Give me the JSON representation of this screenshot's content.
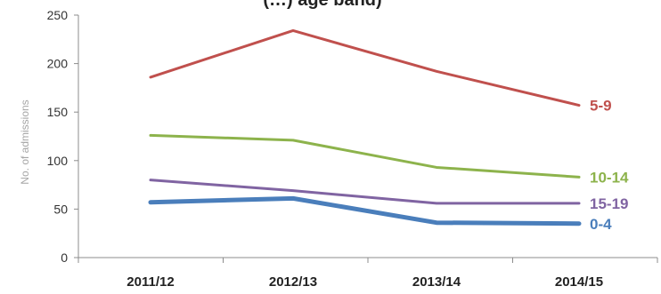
{
  "chart_data": {
    "type": "line",
    "title": "(…) age band)",
    "xlabel": "",
    "ylabel": "No. of admissions",
    "ylim": [
      0,
      250
    ],
    "yticks": [
      0,
      50,
      100,
      150,
      200,
      250
    ],
    "grid": false,
    "legend": "inline-right",
    "categories": [
      "2011/12",
      "2012/13",
      "2013/14",
      "2014/15"
    ],
    "series": [
      {
        "name": "5-9",
        "values": [
          186,
          234,
          192,
          157
        ],
        "color": "#c0504d",
        "width": "normal"
      },
      {
        "name": "10-14",
        "values": [
          126,
          121,
          93,
          83
        ],
        "color": "#8db34c",
        "width": "normal"
      },
      {
        "name": "15-19",
        "values": [
          80,
          69,
          56,
          56
        ],
        "color": "#8064a2",
        "width": "normal"
      },
      {
        "name": "0-4",
        "values": [
          57,
          61,
          36,
          35
        ],
        "color": "#4a7ebb",
        "width": "bold"
      }
    ]
  }
}
